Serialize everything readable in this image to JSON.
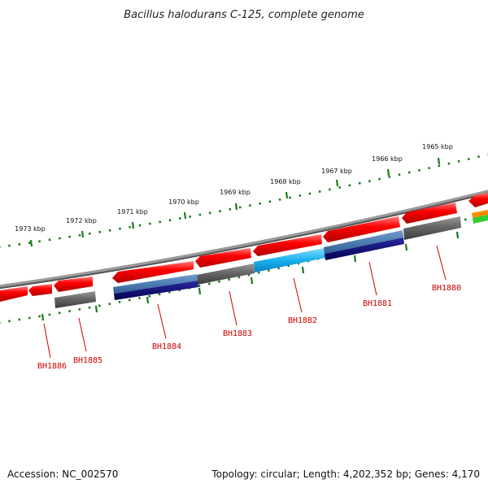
{
  "title": "Bacillus halodurans C-125, complete genome",
  "ruler": {
    "tick_labels": [
      "1973 kbp",
      "1972 kbp",
      "1971 kbp",
      "1970 kbp",
      "1969 kbp",
      "1968 kbp",
      "1967 kbp",
      "1966 kbp",
      "1965 kbp"
    ]
  },
  "genes": [
    {
      "label": "BH1886"
    },
    {
      "label": "BH1885"
    },
    {
      "label": "BH1884"
    },
    {
      "label": "BH1883"
    },
    {
      "label": "BH1882"
    },
    {
      "label": "BH1881"
    },
    {
      "label": "BH1880"
    }
  ],
  "colors": {
    "backbone": "#8a8a8a",
    "gene_forward": "#ff0000",
    "gene_gray": "#666666",
    "track_steel": "#4a7fb5",
    "track_navy": "#0a0a7a",
    "track_cyan": "#1ab0ee",
    "ruler_green": "#1a7a1a",
    "label_red": "#cc0000",
    "partial_orange": "#ff8c00",
    "partial_green": "#33cc33"
  },
  "footer": {
    "accession": "Accession: NC_002570",
    "topology": "Topology: circular; Length: 4,202,352 bp; Genes: 4,170"
  }
}
